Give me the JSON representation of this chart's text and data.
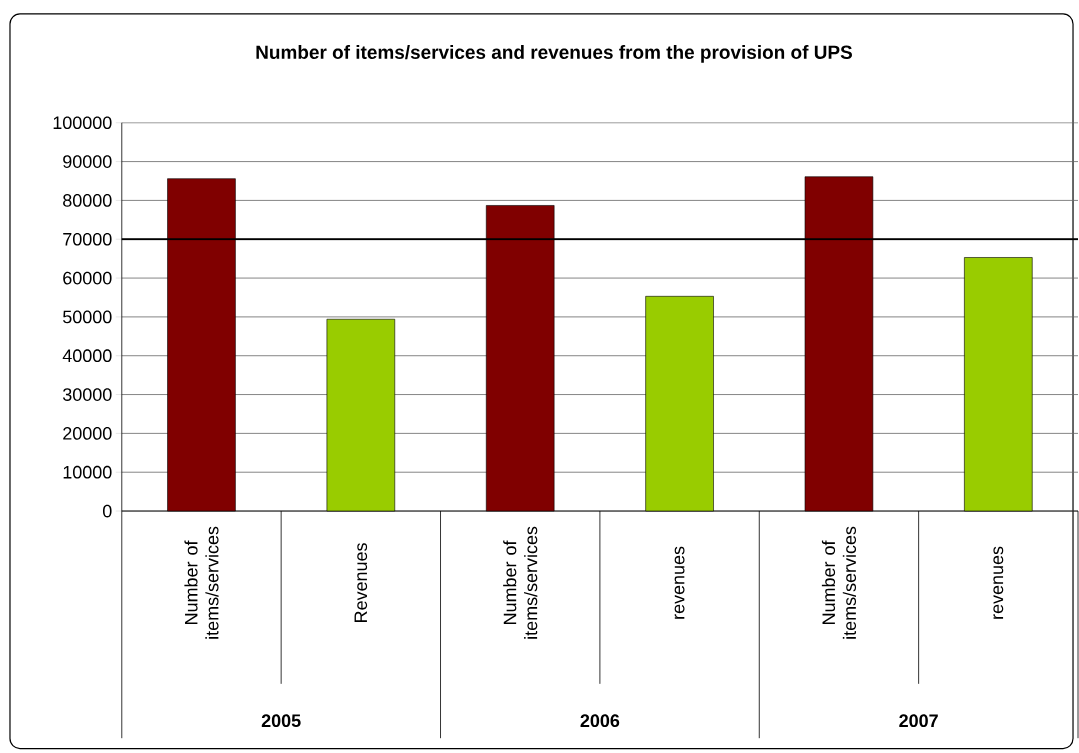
{
  "chart_data": {
    "type": "bar",
    "title": "Number of items/services and revenues from the provision of UPS",
    "categories": [
      "Number of items/services",
      "Revenues",
      "Number of items/services",
      "revenues",
      "Number of items/services",
      "revenues"
    ],
    "values": [
      85600,
      49400,
      78700,
      55300,
      86100,
      65300
    ],
    "colors": [
      "#800000",
      "#99cc00",
      "#800000",
      "#99cc00",
      "#800000",
      "#99cc00"
    ],
    "ylim": [
      0,
      100000
    ],
    "yticks": [
      0,
      10000,
      20000,
      30000,
      40000,
      50000,
      60000,
      70000,
      80000,
      90000,
      100000
    ],
    "grid": "y",
    "ref_lines": [
      {
        "axis": "y",
        "value": 70000,
        "color": "#000000"
      }
    ],
    "annotations": [
      "2005",
      "2006",
      "2007"
    ]
  }
}
